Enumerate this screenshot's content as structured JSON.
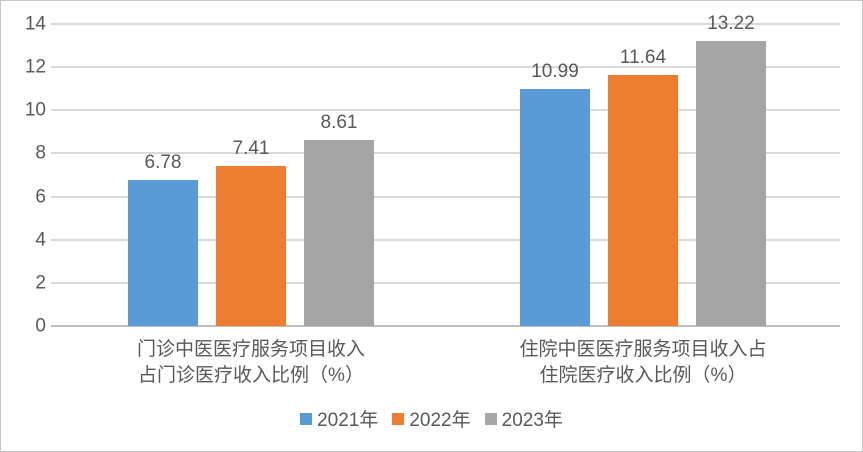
{
  "chart_data": {
    "type": "bar",
    "title": "",
    "xlabel": "",
    "ylabel": "",
    "categories": [
      [
        "门诊中医医疗服务项目收入",
        "占门诊医疗收入比例（%）"
      ],
      [
        "住院中医医疗服务项目收入占",
        "住院医疗收入比例（%）"
      ]
    ],
    "series": [
      {
        "name": "2021年",
        "color": "#5B9BD5",
        "values": [
          6.78,
          10.99
        ]
      },
      {
        "name": "2022年",
        "color": "#ED7D31",
        "values": [
          7.41,
          11.64
        ]
      },
      {
        "name": "2023年",
        "color": "#A5A5A5",
        "values": [
          8.61,
          13.22
        ]
      }
    ],
    "value_labels": [
      [
        "6.78",
        "10.99"
      ],
      [
        "7.41",
        "11.64"
      ],
      [
        "8.61",
        "13.22"
      ]
    ],
    "ylim": [
      0,
      14
    ],
    "ytick_step": 2,
    "yticks": [
      0,
      2,
      4,
      6,
      8,
      10,
      12,
      14
    ],
    "grid": true,
    "value_labels_shown": true,
    "legend_position": "bottom",
    "colors": {
      "text": "#595959",
      "gridline": "#D9D9D9",
      "axis_line": "#BFBFBF",
      "background": "#FFFFFF",
      "border": "#C6C6C6"
    }
  }
}
